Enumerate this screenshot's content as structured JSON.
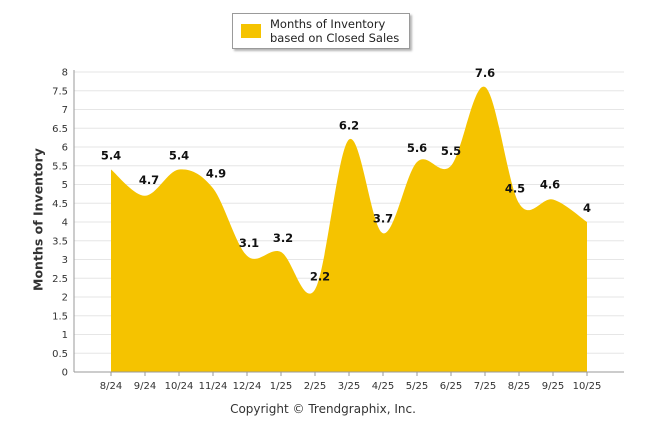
{
  "chart_data": {
    "type": "area",
    "categories": [
      "8/24",
      "9/24",
      "10/24",
      "11/24",
      "12/24",
      "1/25",
      "2/25",
      "3/25",
      "4/25",
      "5/25",
      "6/25",
      "7/25",
      "8/25",
      "9/25",
      "10/25"
    ],
    "series": [
      {
        "name": "Months of Inventory based on Closed Sales",
        "values": [
          5.4,
          4.7,
          5.4,
          4.9,
          3.1,
          3.2,
          2.2,
          6.2,
          3.7,
          5.6,
          5.5,
          7.6,
          4.5,
          4.6,
          4
        ]
      }
    ],
    "ylabel": "Months of Inventory",
    "ylim": [
      0,
      8
    ],
    "yticks": [
      "0",
      "0.5",
      "1",
      "1.5",
      "2",
      "2.5",
      "3",
      "3.5",
      "4",
      "4.5",
      "5",
      "5.5",
      "6",
      "6.5",
      "7",
      "7.5",
      "8"
    ],
    "grid": true,
    "legend_position": "top-center",
    "color": "#f5c300"
  },
  "legend": {
    "label": "Months of Inventory based on Closed Sales"
  },
  "footer": {
    "copyright": "Copyright © Trendgraphix, Inc."
  }
}
